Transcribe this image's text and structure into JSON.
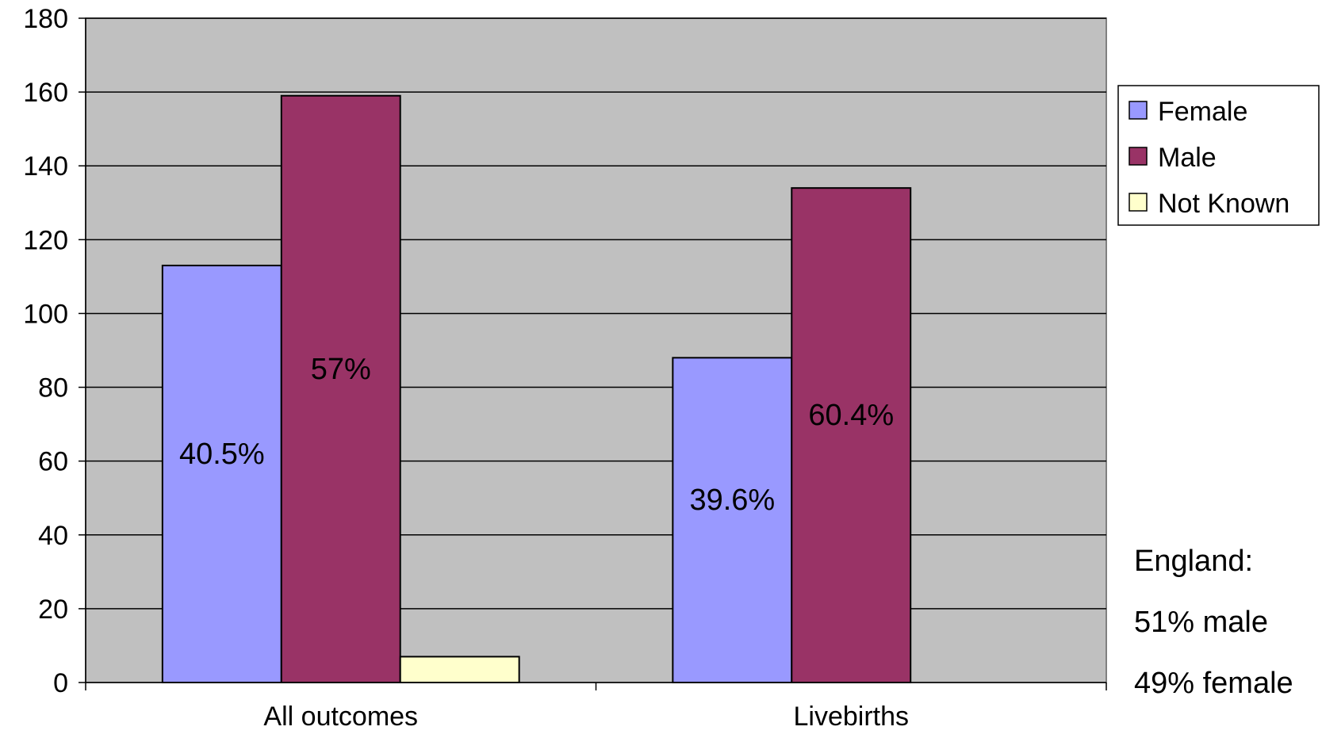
{
  "chart_data": {
    "type": "bar",
    "categories": [
      "All outcomes",
      "Livebirths"
    ],
    "series": [
      {
        "name": "Female",
        "color": "#9999ff",
        "values": [
          113,
          88
        ],
        "labels": [
          "40.5%",
          "39.6%"
        ]
      },
      {
        "name": "Male",
        "color": "#993366",
        "values": [
          159,
          134
        ],
        "labels": [
          "57%",
          "60.4%"
        ]
      },
      {
        "name": "Not Known",
        "color": "#ffffcc",
        "values": [
          7,
          0
        ],
        "labels": [
          "",
          ""
        ]
      }
    ],
    "ylim": [
      0,
      180
    ],
    "yticks": [
      0,
      20,
      40,
      60,
      80,
      100,
      120,
      140,
      160,
      180
    ],
    "plot_background": "#c0c0c0",
    "grid": true,
    "legend_position": "right",
    "annotation": [
      "England:",
      "51% male",
      "49% female"
    ]
  }
}
